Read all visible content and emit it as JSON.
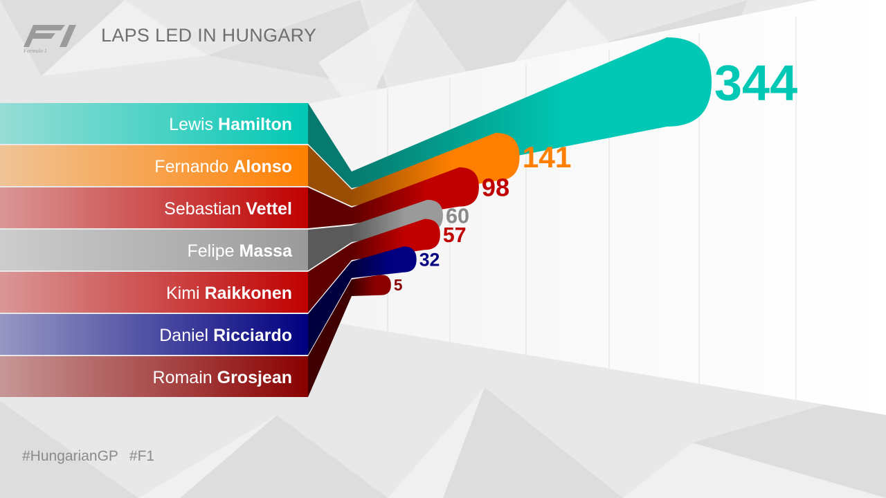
{
  "header": {
    "title": "LAPS LED IN HUNGARY",
    "logo_caption": "Formula 1"
  },
  "footer": {
    "hashtags": [
      "#HungarianGP",
      "#F1"
    ]
  },
  "chart_data": {
    "type": "bar",
    "title": "LAPS LED IN HUNGARY",
    "xlabel": "",
    "ylabel": "",
    "grid": true,
    "categories": [
      "Lewis Hamilton",
      "Fernando Alonso",
      "Sebastian Vettel",
      "Felipe Massa",
      "Kimi Raikkonen",
      "Daniel Ricciardo",
      "Romain Grosjean"
    ],
    "drivers": [
      {
        "first": "Lewis",
        "last": "Hamilton",
        "value": 344,
        "value_label": "344",
        "color": "#00c8b4",
        "dark": "#067a6e"
      },
      {
        "first": "Fernando",
        "last": "Alonso",
        "value": 141,
        "value_label": "141",
        "color": "#ff8000",
        "dark": "#9a4e05"
      },
      {
        "first": "Sebastian",
        "last": "Vettel",
        "value": 98,
        "value_label": "98",
        "color": "#c00000",
        "dark": "#5e0000"
      },
      {
        "first": "Felipe",
        "last": "Massa",
        "value": 60,
        "value_label": "60",
        "color": "#9a9a9a",
        "dark": "#5a5a5a"
      },
      {
        "first": "Kimi",
        "last": "Raikkonen",
        "value": 57,
        "value_label": "57",
        "color": "#c00000",
        "dark": "#5e0000"
      },
      {
        "first": "Daniel",
        "last": "Ricciardo",
        "value": 32,
        "value_label": "32",
        "color": "#000080",
        "dark": "#00003e"
      },
      {
        "first": "Romain",
        "last": "Grosjean",
        "value": 5,
        "value_label": "5",
        "color": "#8a0000",
        "dark": "#3e0000"
      }
    ]
  }
}
